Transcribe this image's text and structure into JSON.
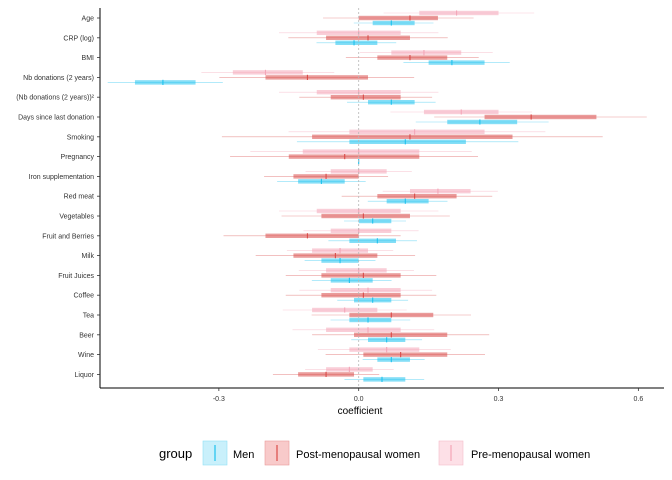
{
  "chart_data": {
    "type": "forest",
    "title": "",
    "xlabel": "coefficient",
    "ylabel": "",
    "xlim": [
      -0.555,
      0.655
    ],
    "xticks": [
      -0.3,
      0,
      0.3,
      0.6
    ],
    "xtick_labels": [
      "-0.3",
      "0.0",
      "0.3",
      "0.6"
    ],
    "reference_line": 0,
    "grid": false,
    "legend": {
      "title": "group",
      "position": "bottom",
      "entries": [
        "Men",
        "Post-menopausal women",
        "Pre-menopausal women"
      ]
    },
    "categories": [
      "Age",
      "CRP (log)",
      "BMI",
      "Nb donations (2 years)",
      "(Nb donations (2 years))²",
      "Days since last donation",
      "Smoking",
      "Pregnancy",
      "Iron supplementation",
      "Red meat",
      "Vegetables",
      "Fruit and Berries",
      "Milk",
      "Fruit Juices",
      "Coffee",
      "Tea",
      "Beer",
      "Wine",
      "Liquor"
    ],
    "series": [
      {
        "name": "Pre-menopausal women",
        "color": "#F4A6B8",
        "estimates": [
          0.21,
          0.0,
          0.14,
          -0.2,
          0.0,
          0.22,
          0.12,
          0.0,
          0.0,
          0.17,
          0.0,
          0.0,
          -0.04,
          0.0,
          0.02,
          -0.03,
          0.02,
          0.06,
          -0.02
        ],
        "ci_low": [
          0.13,
          -0.09,
          0.07,
          -0.27,
          -0.09,
          0.14,
          -0.02,
          -0.12,
          -0.06,
          0.11,
          -0.09,
          -0.06,
          -0.1,
          -0.07,
          -0.06,
          -0.1,
          -0.07,
          -0.02,
          -0.07
        ],
        "ci_high": [
          0.3,
          0.09,
          0.22,
          -0.12,
          0.09,
          0.3,
          0.27,
          0.13,
          0.06,
          0.24,
          0.09,
          0.07,
          0.02,
          0.06,
          0.09,
          0.04,
          0.09,
          0.13,
          0.03
        ]
      },
      {
        "name": "Post-menopausal women",
        "color": "#D94B48",
        "estimates": [
          0.11,
          0.02,
          0.11,
          -0.11,
          0.01,
          0.37,
          0.11,
          -0.03,
          -0.07,
          0.12,
          0.01,
          -0.11,
          -0.05,
          0.01,
          0.01,
          0.07,
          0.07,
          0.09,
          -0.07
        ],
        "ci_low": [
          0.0,
          -0.07,
          0.04,
          -0.2,
          -0.06,
          0.27,
          -0.1,
          -0.15,
          -0.14,
          0.04,
          -0.08,
          -0.2,
          -0.14,
          -0.08,
          -0.08,
          -0.02,
          -0.01,
          0.01,
          -0.13
        ],
        "ci_high": [
          0.17,
          0.11,
          0.19,
          0.02,
          0.09,
          0.51,
          0.33,
          0.13,
          0.0,
          0.21,
          0.11,
          0.0,
          0.04,
          0.09,
          0.09,
          0.16,
          0.19,
          0.19,
          -0.01
        ]
      },
      {
        "name": "Men",
        "color": "#1FC2EE",
        "estimates": [
          0.07,
          -0.01,
          0.2,
          -0.42,
          0.07,
          0.26,
          0.1,
          0.0,
          -0.08,
          0.1,
          0.03,
          0.04,
          -0.04,
          -0.02,
          0.03,
          0.02,
          0.06,
          0.07,
          0.05
        ],
        "ci_low": [
          0.03,
          -0.05,
          0.15,
          -0.48,
          0.02,
          0.19,
          -0.02,
          0.0,
          -0.13,
          0.06,
          0.0,
          -0.02,
          -0.08,
          -0.06,
          -0.01,
          -0.02,
          0.02,
          0.04,
          0.01
        ],
        "ci_high": [
          0.12,
          0.04,
          0.27,
          -0.35,
          0.12,
          0.34,
          0.23,
          0.0,
          -0.03,
          0.15,
          0.07,
          0.08,
          0.0,
          0.03,
          0.07,
          0.07,
          0.1,
          0.11,
          0.1
        ]
      }
    ]
  }
}
